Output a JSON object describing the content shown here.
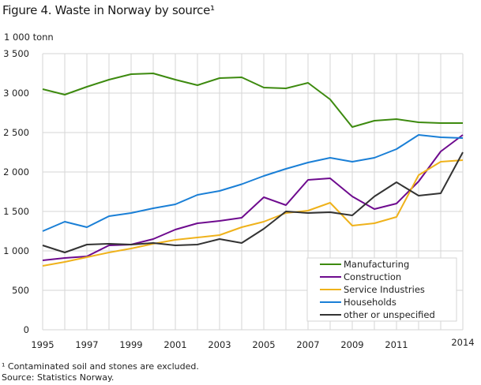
{
  "chart_data": {
    "type": "line",
    "title": "Figure 4. Waste in Norway by source¹",
    "ylabel": "1 000 tonn",
    "xlabel": "",
    "ylim": [
      0,
      3500
    ],
    "yticks": [
      0,
      500,
      1000,
      1500,
      2000,
      2500,
      3000,
      3500
    ],
    "ytick_labels": [
      "0",
      "500",
      "1 000",
      "1 500",
      "2 000",
      "2 500",
      "3 000",
      "3 500"
    ],
    "xlim": [
      1995,
      2014
    ],
    "xtick_labels": [
      "1995",
      "1997",
      "1999",
      "2001",
      "2003",
      "2005",
      "2007",
      "2009",
      "2011",
      "2014"
    ],
    "grid": true,
    "legend_position": "bottom-right",
    "x": [
      1995,
      1996,
      1997,
      1998,
      1999,
      2000,
      2001,
      2002,
      2003,
      2004,
      2005,
      2006,
      2007,
      2008,
      2009,
      2010,
      2011,
      2012,
      2013,
      2014
    ],
    "series": [
      {
        "name": "Manufacturing",
        "color": "#3d8a0f",
        "values": [
          3050,
          2980,
          3080,
          3170,
          3240,
          3250,
          3170,
          3100,
          3190,
          3200,
          3070,
          3060,
          3130,
          2920,
          2570,
          2650,
          2670,
          2630,
          2620,
          2620
        ]
      },
      {
        "name": "Construction",
        "color": "#6e0b8e",
        "values": [
          880,
          910,
          930,
          1070,
          1080,
          1150,
          1270,
          1350,
          1380,
          1420,
          1680,
          1580,
          1900,
          1920,
          1690,
          1530,
          1600,
          1880,
          2260,
          2470
        ]
      },
      {
        "name": "Service Industries",
        "color": "#efb21b",
        "values": [
          810,
          860,
          920,
          980,
          1030,
          1090,
          1140,
          1170,
          1200,
          1300,
          1370,
          1480,
          1510,
          1610,
          1320,
          1350,
          1430,
          1960,
          2130,
          2150
        ]
      },
      {
        "name": "Households",
        "color": "#1a7fd6",
        "values": [
          1250,
          1370,
          1300,
          1440,
          1480,
          1540,
          1590,
          1710,
          1760,
          1845,
          1950,
          2040,
          2120,
          2180,
          2130,
          2180,
          2290,
          2470,
          2440,
          2430
        ]
      },
      {
        "name": "other or unspecified",
        "color": "#333333",
        "values": [
          1070,
          980,
          1080,
          1090,
          1080,
          1100,
          1070,
          1080,
          1150,
          1100,
          1280,
          1500,
          1480,
          1490,
          1450,
          1690,
          1870,
          1700,
          1730,
          2250
        ]
      }
    ]
  },
  "footnote": "¹ Contaminated soil and stones are excluded.",
  "source": "Source: Statistics Norway."
}
